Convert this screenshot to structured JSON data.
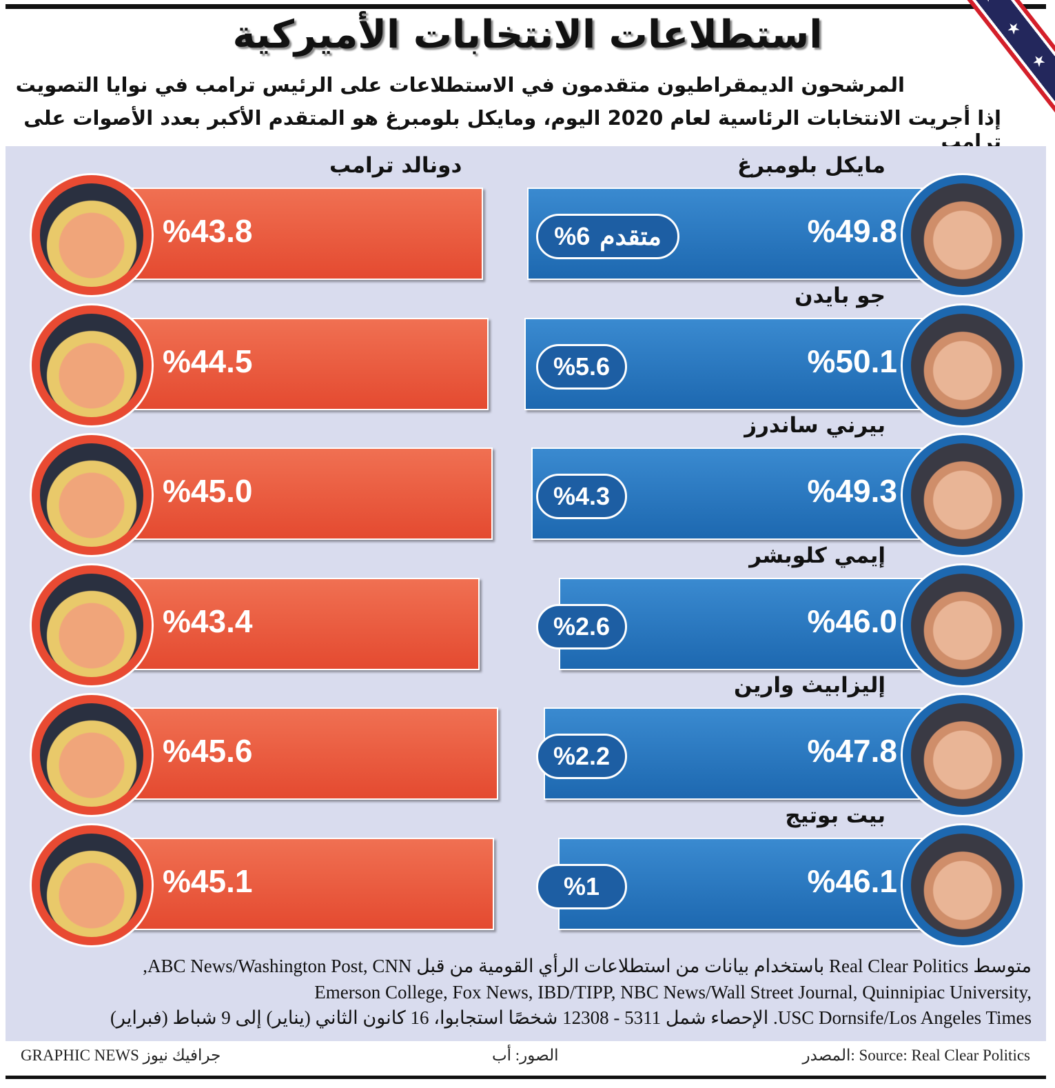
{
  "header": {
    "title": "استطلاعات الانتخابات الأميركية",
    "subtitle_line1": "المرشحون الديمقراطيون متقدمون في الاستطلاعات على الرئيس ترامب في نوايا التصويت",
    "subtitle_line2": "إذا أجريت الانتخابات الرئاسية لعام 2020 اليوم، ومايكل بلومبرغ هو المتقدم الأكبر بعدد الأصوات على ترامب"
  },
  "colors": {
    "trump": "#e84a32",
    "democrat": "#1d68b0",
    "panel": "#d9dcee"
  },
  "chart_data": {
    "type": "bar",
    "title": "استطلاعات الانتخابات الأميركية",
    "opponent_name": "دونالد ترامب",
    "lead_label": "متقدم",
    "rows": [
      {
        "candidate": "مايكل بلومبرغ",
        "democrat": 49.8,
        "trump": 43.8,
        "lead": 6,
        "democrat_label": "%49.8",
        "trump_label": "%43.8",
        "lead_text": "%6"
      },
      {
        "candidate": "جو بايدن",
        "democrat": 50.1,
        "trump": 44.5,
        "lead": 5.6,
        "democrat_label": "%50.1",
        "trump_label": "%44.5",
        "lead_text": "%5.6"
      },
      {
        "candidate": "بيرني ساندرز",
        "democrat": 49.3,
        "trump": 45.0,
        "lead": 4.3,
        "democrat_label": "%49.3",
        "trump_label": "%45.0",
        "lead_text": "%4.3"
      },
      {
        "candidate": "إيمي كلوبشر",
        "democrat": 46.0,
        "trump": 43.4,
        "lead": 2.6,
        "democrat_label": "%46.0",
        "trump_label": "%43.4",
        "lead_text": "%2.6"
      },
      {
        "candidate": "إليزابيث وارين",
        "democrat": 47.8,
        "trump": 45.6,
        "lead": 2.2,
        "democrat_label": "%47.8",
        "trump_label": "%45.6",
        "lead_text": "%2.2"
      },
      {
        "candidate": "بيت بوتيج",
        "democrat": 46.1,
        "trump": 45.1,
        "lead": 1,
        "democrat_label": "%46.1",
        "trump_label": "%45.1",
        "lead_text": "%1"
      }
    ]
  },
  "footer": {
    "note_line1": "متوسط Real Clear Politics باستخدام بيانات من استطلاعات الرأي القومية من قبل ABC News/Washington Post, CNN,",
    "note_line2": "Emerson College, Fox News, IBD/TIPP, NBC News/Wall Street Journal, Quinnipiac University,",
    "note_line3": "USC Dornsife/Los Angeles Times. الإحصاء شمل 5311 - 12308 شخصًا استجابوا، 16 كانون الثاني (يناير) إلى 9 شباط (فبراير)",
    "source": "المصدر: Source: Real Clear Politics",
    "photos": "الصور: أب",
    "brand": "GRAPHIC NEWS جرافيك نيوز"
  }
}
